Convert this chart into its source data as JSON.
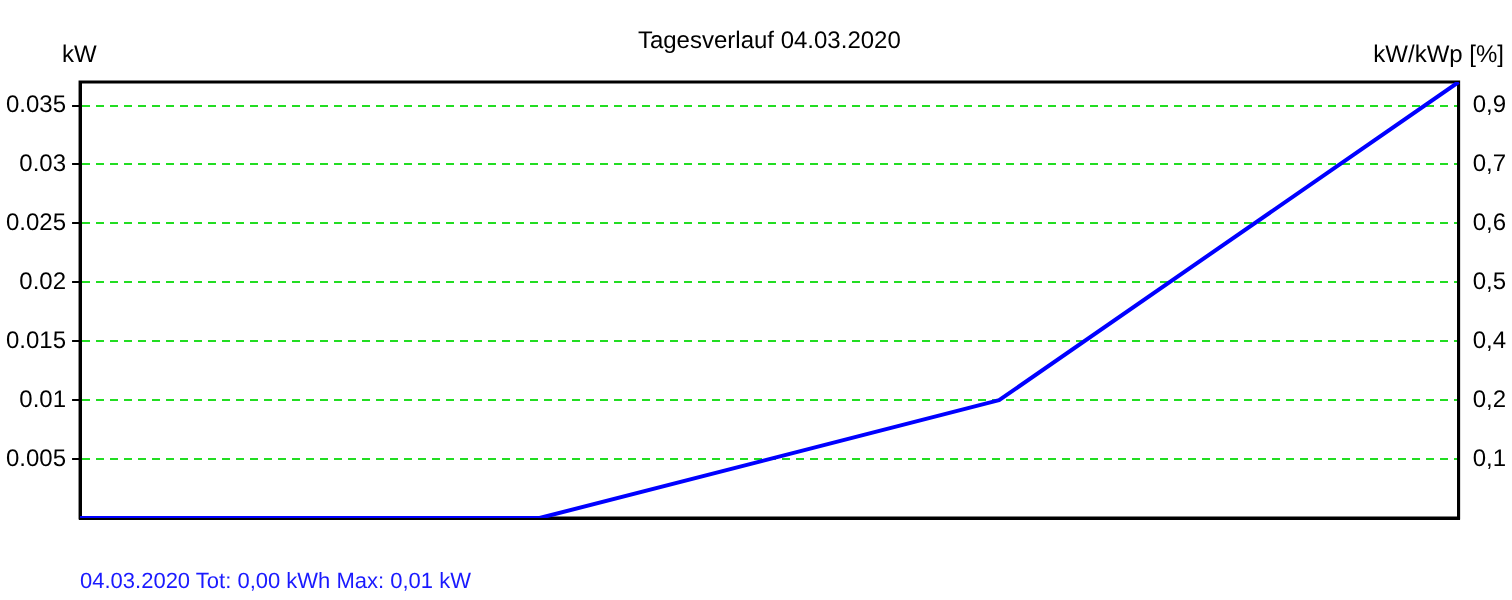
{
  "chart_data": {
    "type": "line",
    "title": "Tagesverlauf 04.03.2020",
    "ylabel": "kW",
    "y2label": "kW/kWp [%]",
    "categories": [
      null,
      null,
      null,
      null
    ],
    "series": [
      {
        "color": "#0000ff",
        "values": [
          0,
          0,
          0.01,
          0.037
        ]
      }
    ],
    "ylim": [
      0,
      0.037
    ],
    "yticks": [
      0.005,
      0.01,
      0.015,
      0.02,
      0.025,
      0.03,
      0.035
    ],
    "y2lim": [
      0,
      0.91
    ],
    "y2ticks": [
      {
        "value": 0.123,
        "label": "0,1"
      },
      {
        "value": 0.246,
        "label": "0,2"
      },
      {
        "value": 0.369,
        "label": "0,4"
      },
      {
        "value": 0.492,
        "label": "0,5"
      },
      {
        "value": 0.615,
        "label": "0,6"
      },
      {
        "value": 0.738,
        "label": "0,7"
      },
      {
        "value": 0.861,
        "label": "0,9"
      }
    ],
    "grid": "y",
    "legend": false,
    "marker": "none",
    "line_style": "solid",
    "annotations": [
      "04.03.2020 Tot: 0,00 kWh Max: 0,01 kW"
    ]
  }
}
